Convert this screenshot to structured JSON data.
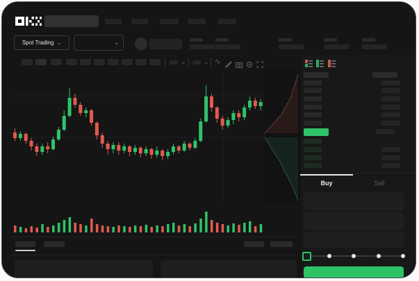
{
  "header": {
    "brand": "OKX",
    "search_placeholder": ""
  },
  "ticker": {
    "market_selector_label": "Spot Trading",
    "chevron": "⌄"
  },
  "toolbar": {
    "indicator_chevron": "⌄",
    "wave_icon_glyph": "∿"
  },
  "order_book": {
    "view_icons": [
      "orderbook-combined-icon",
      "orderbook-bids-only-icon",
      "orderbook-asks-only-icon"
    ],
    "ask_rows": 6,
    "bid_rows": 4,
    "tabs": {
      "buy": "Buy",
      "sell": "Sell"
    },
    "slider_steps": 5,
    "slider_position": 0
  },
  "colors": {
    "up_green": "#2fc368",
    "down_red": "#e25a50",
    "depth_bid_line": "#4aa88c",
    "depth_ask_line": "#c97a6e",
    "panel_bg": "#181818",
    "window_bg": "#151515"
  },
  "chart_data": {
    "type": "candlestick",
    "title": "",
    "xlabel": "",
    "ylabel": "",
    "grid": true,
    "price_scale": [
      0,
      100
    ],
    "candles_ohlc": [
      [
        50,
        53,
        44,
        46
      ],
      [
        46,
        51,
        44,
        49
      ],
      [
        49,
        50,
        42,
        44
      ],
      [
        44,
        46,
        37,
        40
      ],
      [
        40,
        42,
        33,
        36
      ],
      [
        36,
        42,
        34,
        40
      ],
      [
        40,
        43,
        35,
        38
      ],
      [
        38,
        47,
        37,
        45
      ],
      [
        45,
        54,
        44,
        52
      ],
      [
        52,
        66,
        51,
        62
      ],
      [
        62,
        82,
        61,
        75
      ],
      [
        75,
        78,
        68,
        70
      ],
      [
        70,
        72,
        62,
        64
      ],
      [
        64,
        68,
        61,
        66
      ],
      [
        66,
        67,
        55,
        57
      ],
      [
        57,
        58,
        45,
        48
      ],
      [
        48,
        50,
        39,
        42
      ],
      [
        42,
        44,
        34,
        38
      ],
      [
        38,
        43,
        35,
        41
      ],
      [
        41,
        43,
        34,
        37
      ],
      [
        37,
        42,
        35,
        40
      ],
      [
        40,
        41,
        33,
        36
      ],
      [
        36,
        41,
        34,
        39
      ],
      [
        39,
        40,
        32,
        35
      ],
      [
        35,
        40,
        33,
        38
      ],
      [
        38,
        39,
        31,
        34
      ],
      [
        34,
        40,
        32,
        37
      ],
      [
        37,
        38,
        30,
        33
      ],
      [
        33,
        38,
        31,
        36
      ],
      [
        36,
        42,
        34,
        40
      ],
      [
        40,
        41,
        35,
        37
      ],
      [
        37,
        44,
        36,
        42
      ],
      [
        42,
        43,
        37,
        39
      ],
      [
        39,
        46,
        38,
        44
      ],
      [
        44,
        60,
        43,
        58
      ],
      [
        58,
        84,
        57,
        76
      ],
      [
        76,
        78,
        65,
        68
      ],
      [
        68,
        69,
        57,
        60
      ],
      [
        60,
        62,
        52,
        55
      ],
      [
        55,
        61,
        53,
        59
      ],
      [
        59,
        66,
        56,
        64
      ],
      [
        64,
        66,
        58,
        61
      ],
      [
        61,
        70,
        59,
        68
      ],
      [
        68,
        76,
        66,
        73
      ],
      [
        73,
        75,
        67,
        69
      ],
      [
        69,
        74,
        66,
        72
      ]
    ],
    "volumes": [
      10,
      8,
      6,
      9,
      7,
      12,
      8,
      10,
      14,
      18,
      22,
      14,
      12,
      10,
      20,
      12,
      10,
      9,
      8,
      10,
      9,
      8,
      10,
      9,
      11,
      8,
      10,
      9,
      12,
      14,
      10,
      12,
      9,
      13,
      20,
      30,
      18,
      14,
      12,
      10,
      13,
      11,
      14,
      16,
      9,
      12
    ],
    "depth": {
      "asks_points": [
        [
          0,
          93
        ],
        [
          4,
          88
        ],
        [
          7,
          84
        ],
        [
          10,
          83
        ],
        [
          13,
          78
        ],
        [
          16,
          76
        ],
        [
          20,
          70
        ],
        [
          24,
          66
        ],
        [
          27,
          60
        ],
        [
          30,
          55
        ],
        [
          33,
          50
        ],
        [
          36,
          44
        ],
        [
          38,
          40
        ],
        [
          40,
          32
        ],
        [
          43,
          25
        ],
        [
          46,
          14
        ],
        [
          48,
          8
        ]
      ],
      "bids_points": [
        [
          0,
          99
        ],
        [
          3,
          104
        ],
        [
          6,
          108
        ],
        [
          9,
          114
        ],
        [
          12,
          118
        ],
        [
          15,
          124
        ],
        [
          18,
          128
        ],
        [
          22,
          134
        ],
        [
          25,
          140
        ],
        [
          28,
          148
        ],
        [
          31,
          152
        ],
        [
          34,
          158
        ],
        [
          37,
          164
        ],
        [
          40,
          170
        ],
        [
          43,
          178
        ],
        [
          46,
          184
        ],
        [
          48,
          190
        ]
      ]
    }
  }
}
